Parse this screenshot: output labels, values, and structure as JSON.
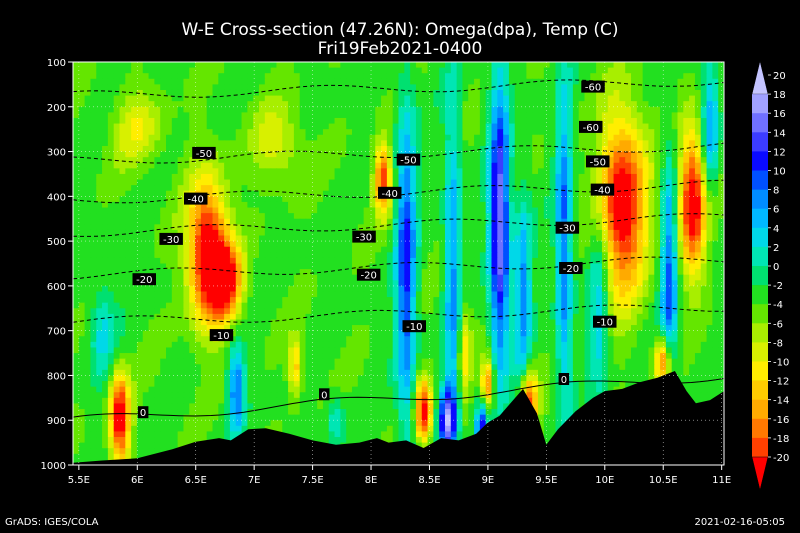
{
  "chart_data": {
    "type": "heatmap",
    "title": "W-E Cross-section (47.26N): Omega(dpa), Temp (C)",
    "subtitle": "Fri19Feb2021-0400",
    "x_ticks": [
      "5.5E",
      "6E",
      "6.5E",
      "7E",
      "7.5E",
      "8E",
      "8.5E",
      "9E",
      "9.5E",
      "10E",
      "10.5E",
      "11E"
    ],
    "x_values": [
      5.5,
      6,
      6.5,
      7,
      7.5,
      8,
      8.5,
      9,
      9.5,
      10,
      10.5,
      11
    ],
    "xlim": [
      5.45,
      11.02
    ],
    "y_ticks": [
      "100",
      "200",
      "300",
      "400",
      "500",
      "600",
      "700",
      "800",
      "900",
      "1000"
    ],
    "y_values": [
      100,
      200,
      300,
      400,
      500,
      600,
      700,
      800,
      900,
      1000
    ],
    "ylim": [
      100,
      1000
    ],
    "grid": "dotted",
    "colorbar": {
      "labels": [
        "20",
        "18",
        "16",
        "14",
        "12",
        "10",
        "8",
        "6",
        "4",
        "2",
        "0",
        "-2",
        "-4",
        "-6",
        "-8",
        "-10",
        "-12",
        "-14",
        "-16",
        "-18",
        "-20"
      ],
      "colors": [
        "#c4c4ff",
        "#a0a0ff",
        "#7070ff",
        "#3c3cff",
        "#0a0aff",
        "#0050ff",
        "#008cff",
        "#00b8ff",
        "#00d8e8",
        "#00e6b4",
        "#00e070",
        "#22e020",
        "#64e600",
        "#a8ee00",
        "#d8f000",
        "#ffee00",
        "#ffcc00",
        "#ffaa00",
        "#ff7800",
        "#ff4000",
        "#ff0000"
      ]
    },
    "temperature_contours": [
      {
        "label": "-60",
        "pressure": 160
      },
      {
        "label": "-50",
        "pressure": 305
      },
      {
        "label": "-40",
        "pressure": 392
      },
      {
        "label": "-30",
        "pressure": 465
      },
      {
        "label": "-20",
        "pressure": 560
      },
      {
        "label": "-10",
        "pressure": 665
      },
      {
        "label": "0",
        "pressure": 855
      }
    ],
    "contour_label_points": [
      {
        "label": "-60",
        "x": 9.9,
        "p": 155
      },
      {
        "label": "-60",
        "x": 9.88,
        "p": 245
      },
      {
        "label": "-50",
        "x": 6.57,
        "p": 303
      },
      {
        "label": "-50",
        "x": 8.32,
        "p": 318
      },
      {
        "label": "-50",
        "x": 9.94,
        "p": 322
      },
      {
        "label": "-40",
        "x": 6.5,
        "p": 405
      },
      {
        "label": "-40",
        "x": 8.16,
        "p": 392
      },
      {
        "label": "-40",
        "x": 9.98,
        "p": 385
      },
      {
        "label": "-30",
        "x": 6.29,
        "p": 495
      },
      {
        "label": "-30",
        "x": 7.94,
        "p": 490
      },
      {
        "label": "-30",
        "x": 9.68,
        "p": 470
      },
      {
        "label": "-20",
        "x": 6.06,
        "p": 585
      },
      {
        "label": "-20",
        "x": 7.98,
        "p": 575
      },
      {
        "label": "-20",
        "x": 9.71,
        "p": 560
      },
      {
        "label": "-10",
        "x": 6.72,
        "p": 710
      },
      {
        "label": "-10",
        "x": 8.37,
        "p": 690
      },
      {
        "label": "-10",
        "x": 10.0,
        "p": 680
      },
      {
        "label": "0",
        "x": 6.05,
        "p": 882
      },
      {
        "label": "0",
        "x": 7.6,
        "p": 842
      },
      {
        "label": "0",
        "x": 9.65,
        "p": 808
      }
    ],
    "omega_features": [
      {
        "x": 6.6,
        "p": 520,
        "sx": 0.12,
        "sy": 110,
        "v": -20
      },
      {
        "x": 6.75,
        "p": 590,
        "sx": 0.1,
        "sy": 60,
        "v": -18
      },
      {
        "x": 5.85,
        "p": 895,
        "sx": 0.06,
        "sy": 70,
        "v": -20
      },
      {
        "x": 8.1,
        "p": 360,
        "sx": 0.05,
        "sy": 55,
        "v": -16
      },
      {
        "x": 8.45,
        "p": 880,
        "sx": 0.05,
        "sy": 50,
        "v": -18
      },
      {
        "x": 10.15,
        "p": 420,
        "sx": 0.14,
        "sy": 140,
        "v": -20
      },
      {
        "x": 10.75,
        "p": 410,
        "sx": 0.08,
        "sy": 110,
        "v": -20
      },
      {
        "x": 10.5,
        "p": 770,
        "sx": 0.05,
        "sy": 40,
        "v": -16
      },
      {
        "x": 9.35,
        "p": 860,
        "sx": 0.05,
        "sy": 50,
        "v": -16
      },
      {
        "x": 9.0,
        "p": 820,
        "sx": 0.04,
        "sy": 40,
        "v": -14
      },
      {
        "x": 7.35,
        "p": 780,
        "sx": 0.04,
        "sy": 45,
        "v": -10
      },
      {
        "x": 5.7,
        "p": 700,
        "sx": 0.08,
        "sy": 80,
        "v": 6
      },
      {
        "x": 6.85,
        "p": 830,
        "sx": 0.05,
        "sy": 70,
        "v": 12
      },
      {
        "x": 8.3,
        "p": 560,
        "sx": 0.06,
        "sy": 260,
        "v": 14
      },
      {
        "x": 8.7,
        "p": 560,
        "sx": 0.05,
        "sy": 300,
        "v": 10
      },
      {
        "x": 9.1,
        "p": 470,
        "sx": 0.06,
        "sy": 220,
        "v": 20
      },
      {
        "x": 9.3,
        "p": 620,
        "sx": 0.05,
        "sy": 160,
        "v": 10
      },
      {
        "x": 9.65,
        "p": 500,
        "sx": 0.05,
        "sy": 250,
        "v": 12
      },
      {
        "x": 9.95,
        "p": 640,
        "sx": 0.06,
        "sy": 150,
        "v": 8
      },
      {
        "x": 10.55,
        "p": 590,
        "sx": 0.05,
        "sy": 200,
        "v": 12
      },
      {
        "x": 8.65,
        "p": 900,
        "sx": 0.05,
        "sy": 50,
        "v": 18
      },
      {
        "x": 8.95,
        "p": 920,
        "sx": 0.04,
        "sy": 40,
        "v": 16
      },
      {
        "x": 10.9,
        "p": 250,
        "sx": 0.05,
        "sy": 100,
        "v": 10
      },
      {
        "x": 7.7,
        "p": 900,
        "sx": 0.05,
        "sy": 40,
        "v": 6
      },
      {
        "x": 8.8,
        "p": 750,
        "sx": 0.04,
        "sy": 80,
        "v": -8
      },
      {
        "x": 7.2,
        "p": 280,
        "sx": 0.15,
        "sy": 60,
        "v": -6
      },
      {
        "x": 6.0,
        "p": 250,
        "sx": 0.15,
        "sy": 60,
        "v": -6
      }
    ],
    "terrain_surface": [
      {
        "x": 5.45,
        "p": 995
      },
      {
        "x": 5.7,
        "p": 990
      },
      {
        "x": 6.0,
        "p": 985
      },
      {
        "x": 6.3,
        "p": 965
      },
      {
        "x": 6.5,
        "p": 948
      },
      {
        "x": 6.7,
        "p": 940
      },
      {
        "x": 6.8,
        "p": 945
      },
      {
        "x": 6.95,
        "p": 920
      },
      {
        "x": 7.1,
        "p": 918
      },
      {
        "x": 7.3,
        "p": 930
      },
      {
        "x": 7.5,
        "p": 945
      },
      {
        "x": 7.7,
        "p": 955
      },
      {
        "x": 7.9,
        "p": 950
      },
      {
        "x": 8.05,
        "p": 940
      },
      {
        "x": 8.15,
        "p": 950
      },
      {
        "x": 8.3,
        "p": 945
      },
      {
        "x": 8.45,
        "p": 962
      },
      {
        "x": 8.6,
        "p": 940
      },
      {
        "x": 8.75,
        "p": 945
      },
      {
        "x": 8.9,
        "p": 930
      },
      {
        "x": 9.0,
        "p": 905
      },
      {
        "x": 9.1,
        "p": 890
      },
      {
        "x": 9.2,
        "p": 860
      },
      {
        "x": 9.3,
        "p": 830
      },
      {
        "x": 9.42,
        "p": 885
      },
      {
        "x": 9.5,
        "p": 955
      },
      {
        "x": 9.6,
        "p": 920
      },
      {
        "x": 9.75,
        "p": 880
      },
      {
        "x": 9.9,
        "p": 850
      },
      {
        "x": 10.0,
        "p": 835
      },
      {
        "x": 10.15,
        "p": 830
      },
      {
        "x": 10.3,
        "p": 815
      },
      {
        "x": 10.45,
        "p": 805
      },
      {
        "x": 10.6,
        "p": 790
      },
      {
        "x": 10.7,
        "p": 835
      },
      {
        "x": 10.78,
        "p": 862
      },
      {
        "x": 10.9,
        "p": 855
      },
      {
        "x": 11.02,
        "p": 835
      }
    ]
  },
  "footer": {
    "credit": "GrADS: IGES/COLA",
    "timestamp": "2021-02-16-05:05"
  }
}
